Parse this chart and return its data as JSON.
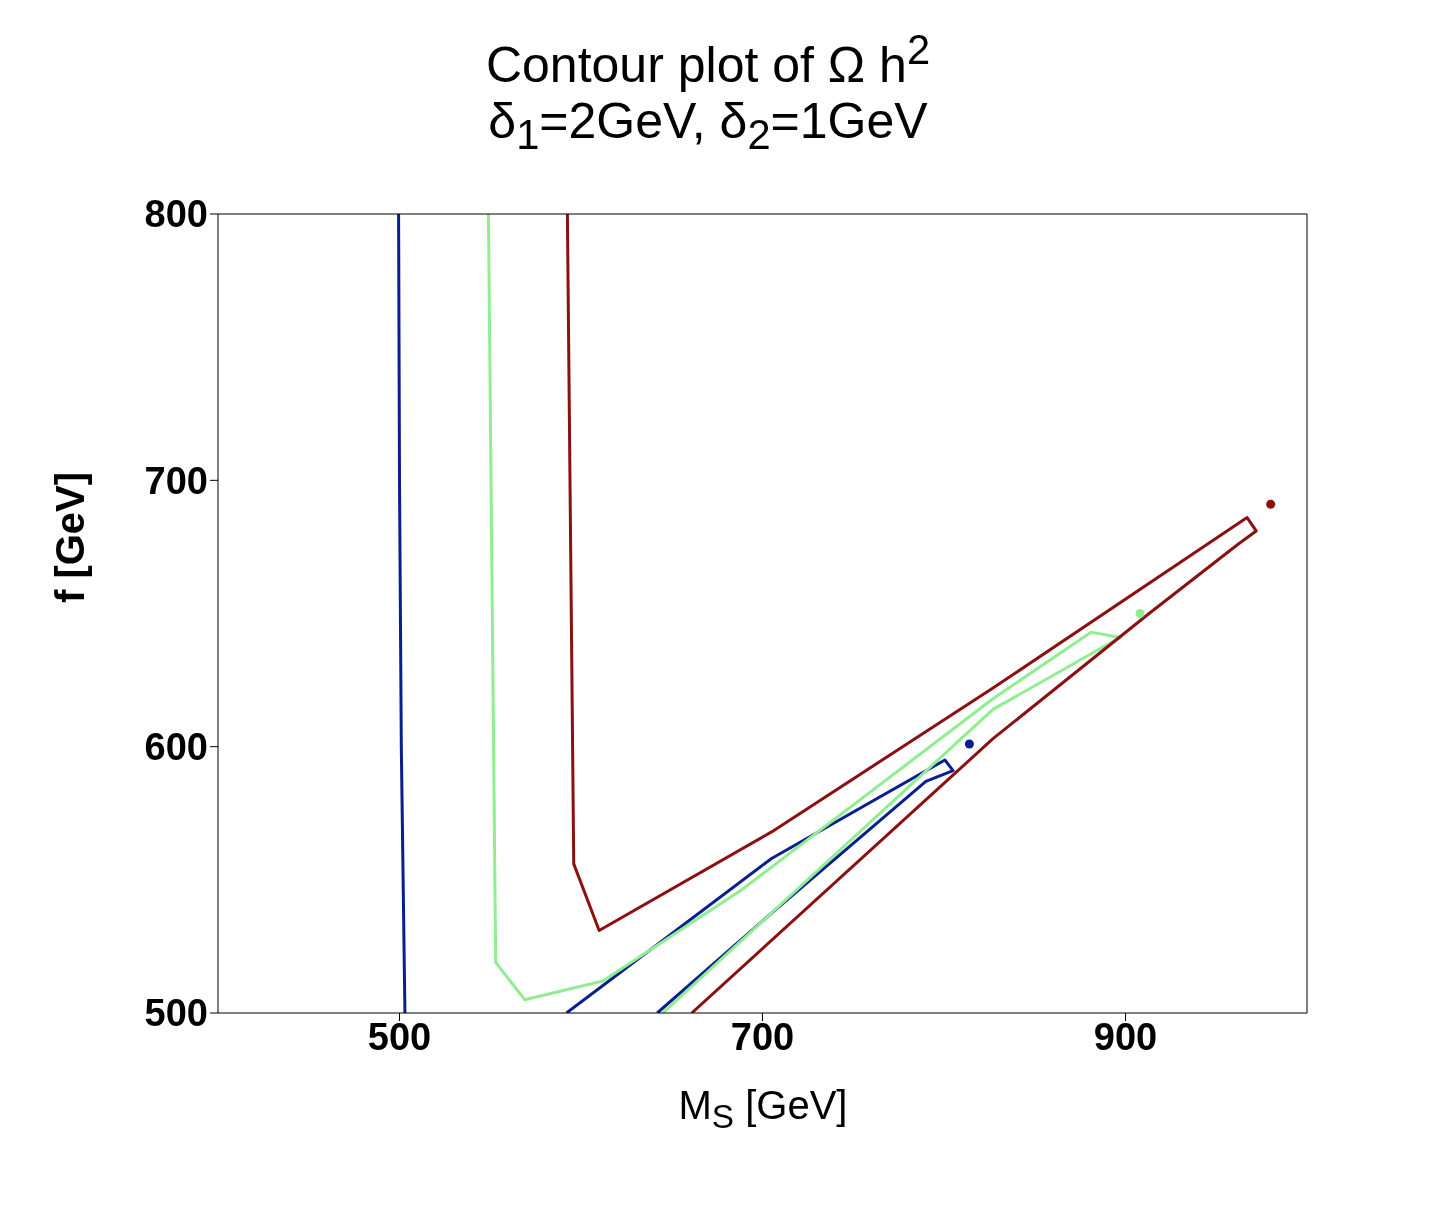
{
  "chart_data": {
    "type": "line",
    "title": "Contour plot of Ω h$^{2}$",
    "subtitle": "δ$_{1}$=2GeV, δ$_{2}$=1GeV",
    "xlabel": "M$_{S}$ [GeV]",
    "ylabel": "f [GeV]",
    "xlim": [
      400,
      1000
    ],
    "xticks": [
      500,
      700,
      900
    ],
    "ylim": [
      500,
      800
    ],
    "yticks": [
      500,
      600,
      700,
      800
    ],
    "grid": false,
    "marker": "none",
    "line_style": "solid",
    "series": [
      {
        "color": "#0a1f8f",
        "x": [
          499.5,
          500,
          501,
          503
        ],
        "values": [
          800,
          700,
          600,
          500
        ]
      },
      {
        "color": "#0a1f8f",
        "x": [
          642,
          705,
          790,
          805,
          800.5,
          705,
          592
        ],
        "values": [
          500,
          537.5,
          587,
          591,
          595,
          558,
          500
        ]
      },
      {
        "type": "scatter",
        "marker": "circle",
        "color": "#0a1f8f",
        "x": [
          814
        ],
        "values": [
          601
        ]
      },
      {
        "color": "#90ee90",
        "x": [
          645,
          827,
          884,
          897,
          881,
          827,
          688,
          612,
          569,
          553,
          549
        ],
        "values": [
          500,
          614,
          636,
          641,
          643,
          618,
          546,
          512,
          505,
          519,
          800
        ]
      },
      {
        "type": "scatter",
        "marker": "circle",
        "color": "#90ee90",
        "x": [
          908
        ],
        "values": [
          650
        ]
      },
      {
        "color": "#8b1010",
        "x": [
          661,
          827,
          913,
          962,
          972,
          967,
          827,
          705,
          610,
          596,
          592.5
        ],
        "values": [
          500,
          603,
          650,
          676,
          681,
          686,
          622,
          568,
          531,
          556,
          800
        ]
      },
      {
        "type": "scatter",
        "marker": "circle",
        "color": "#8b1010",
        "x": [
          980
        ],
        "values": [
          691
        ]
      }
    ]
  }
}
